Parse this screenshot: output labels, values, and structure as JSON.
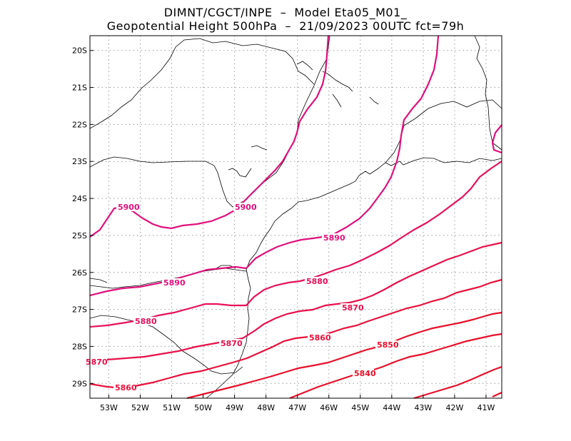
{
  "title": {
    "line1": "DIMNT/CGCT/INPE  –  Model Eta05_M01_",
    "line2": "Geopotential Height 500hPa  –  21/09/2023 00UTC fct=79h"
  },
  "map": {
    "lon_range": [
      -53.6,
      -40.5
    ],
    "lat_range": [
      -29.4,
      -19.6
    ],
    "lat_ticks": [
      {
        "value": -20,
        "label": "20S"
      },
      {
        "value": -21,
        "label": "21S"
      },
      {
        "value": -22,
        "label": "22S"
      },
      {
        "value": -23,
        "label": "23S"
      },
      {
        "value": -24,
        "label": "24S"
      },
      {
        "value": -25,
        "label": "25S"
      },
      {
        "value": -26,
        "label": "26S"
      },
      {
        "value": -27,
        "label": "27S"
      },
      {
        "value": -28,
        "label": "28S"
      },
      {
        "value": -29,
        "label": "29S"
      }
    ],
    "lon_ticks": [
      {
        "value": -53,
        "label": "53W"
      },
      {
        "value": -52,
        "label": "52W"
      },
      {
        "value": -51,
        "label": "51W"
      },
      {
        "value": -50,
        "label": "50W"
      },
      {
        "value": -49,
        "label": "49W"
      },
      {
        "value": -48,
        "label": "48W"
      },
      {
        "value": -47,
        "label": "47W"
      },
      {
        "value": -46,
        "label": "46W"
      },
      {
        "value": -45,
        "label": "45W"
      },
      {
        "value": -44,
        "label": "44W"
      },
      {
        "value": -43,
        "label": "43W"
      },
      {
        "value": -42,
        "label": "42W"
      },
      {
        "value": -41,
        "label": "41W"
      }
    ],
    "grid": "dotted",
    "variable": "Geopotential Height 500hPa",
    "contour_color_low": "#e8102a",
    "contour_color_high": "#e0107c"
  },
  "contours": [
    {
      "level": 5900,
      "color": "#e0107c",
      "labels": [
        "5900",
        "5900"
      ]
    },
    {
      "level": 5890,
      "color": "#e0107c",
      "labels": [
        "5890",
        "5890"
      ]
    },
    {
      "level": 5880,
      "color": "#e8105a",
      "labels": [
        "5880",
        "5880"
      ]
    },
    {
      "level": 5870,
      "color": "#e8104a",
      "labels": [
        "5870",
        "5870",
        "5870"
      ]
    },
    {
      "level": 5860,
      "color": "#e8103a",
      "labels": [
        "5860",
        "5860"
      ]
    },
    {
      "level": 5850,
      "color": "#e8102a",
      "labels": [
        "5850"
      ]
    },
    {
      "level": 5840,
      "color": "#e8102a",
      "labels": [
        "5840"
      ]
    }
  ]
}
